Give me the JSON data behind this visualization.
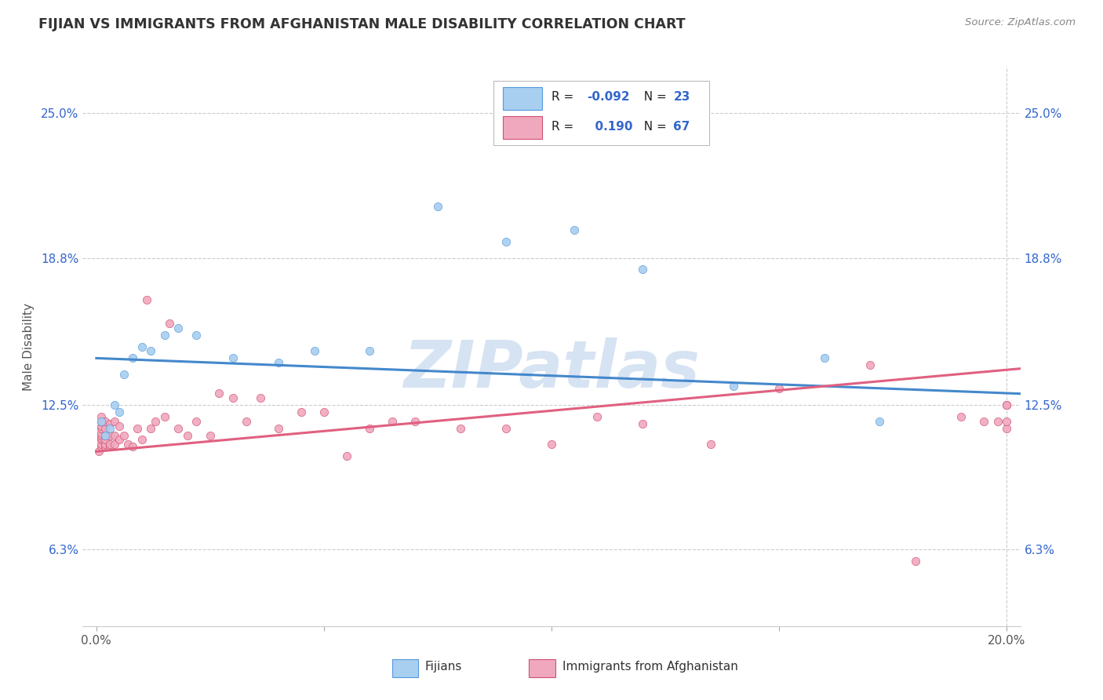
{
  "title": "FIJIAN VS IMMIGRANTS FROM AFGHANISTAN MALE DISABILITY CORRELATION CHART",
  "source": "Source: ZipAtlas.com",
  "ylabel_label": "Male Disability",
  "xlim": [
    -0.003,
    0.203
  ],
  "ylim": [
    0.03,
    0.27
  ],
  "xticks": [
    0.0,
    0.05,
    0.1,
    0.15,
    0.2
  ],
  "xtick_labels": [
    "0.0%",
    "",
    "",
    "",
    "20.0%"
  ],
  "ytick_labels": [
    "6.3%",
    "12.5%",
    "18.8%",
    "25.0%"
  ],
  "ytick_values": [
    0.063,
    0.125,
    0.188,
    0.25
  ],
  "color_fijian": "#a8cef0",
  "color_afghanistan": "#f0a8be",
  "color_fijian_line": "#4488cc",
  "color_afghanistan_line": "#e06080",
  "color_fijian_edge": "#5599dd",
  "color_afghanistan_edge": "#d05070",
  "background_color": "#ffffff",
  "grid_color": "#cccccc",
  "watermark_color": "#c5d8ee",
  "fijian_x": [
    0.001,
    0.002,
    0.003,
    0.004,
    0.005,
    0.006,
    0.008,
    0.01,
    0.012,
    0.015,
    0.018,
    0.022,
    0.03,
    0.04,
    0.048,
    0.06,
    0.075,
    0.09,
    0.105,
    0.12,
    0.14,
    0.16,
    0.172
  ],
  "fijian_y": [
    0.118,
    0.112,
    0.115,
    0.125,
    0.122,
    0.138,
    0.145,
    0.15,
    0.148,
    0.155,
    0.158,
    0.155,
    0.145,
    0.143,
    0.148,
    0.148,
    0.21,
    0.195,
    0.2,
    0.183,
    0.133,
    0.145,
    0.118
  ],
  "afghanistan_x": [
    0.0005,
    0.001,
    0.001,
    0.001,
    0.001,
    0.001,
    0.001,
    0.001,
    0.001,
    0.001,
    0.001,
    0.002,
    0.002,
    0.002,
    0.002,
    0.002,
    0.002,
    0.003,
    0.003,
    0.003,
    0.003,
    0.004,
    0.004,
    0.004,
    0.005,
    0.005,
    0.006,
    0.007,
    0.008,
    0.009,
    0.01,
    0.011,
    0.012,
    0.013,
    0.015,
    0.016,
    0.018,
    0.02,
    0.022,
    0.025,
    0.027,
    0.03,
    0.033,
    0.036,
    0.04,
    0.045,
    0.05,
    0.055,
    0.06,
    0.065,
    0.07,
    0.08,
    0.09,
    0.1,
    0.11,
    0.12,
    0.135,
    0.15,
    0.17,
    0.18,
    0.19,
    0.195,
    0.198,
    0.2,
    0.2,
    0.2,
    0.2
  ],
  "afghanistan_y": [
    0.105,
    0.107,
    0.108,
    0.11,
    0.111,
    0.112,
    0.113,
    0.115,
    0.116,
    0.118,
    0.12,
    0.107,
    0.108,
    0.11,
    0.112,
    0.115,
    0.118,
    0.107,
    0.108,
    0.112,
    0.117,
    0.108,
    0.112,
    0.118,
    0.11,
    0.116,
    0.112,
    0.108,
    0.107,
    0.115,
    0.11,
    0.17,
    0.115,
    0.118,
    0.12,
    0.16,
    0.115,
    0.112,
    0.118,
    0.112,
    0.13,
    0.128,
    0.118,
    0.128,
    0.115,
    0.122,
    0.122,
    0.103,
    0.115,
    0.118,
    0.118,
    0.115,
    0.115,
    0.108,
    0.12,
    0.117,
    0.108,
    0.132,
    0.142,
    0.058,
    0.12,
    0.118,
    0.118,
    0.115,
    0.125,
    0.125,
    0.118
  ]
}
